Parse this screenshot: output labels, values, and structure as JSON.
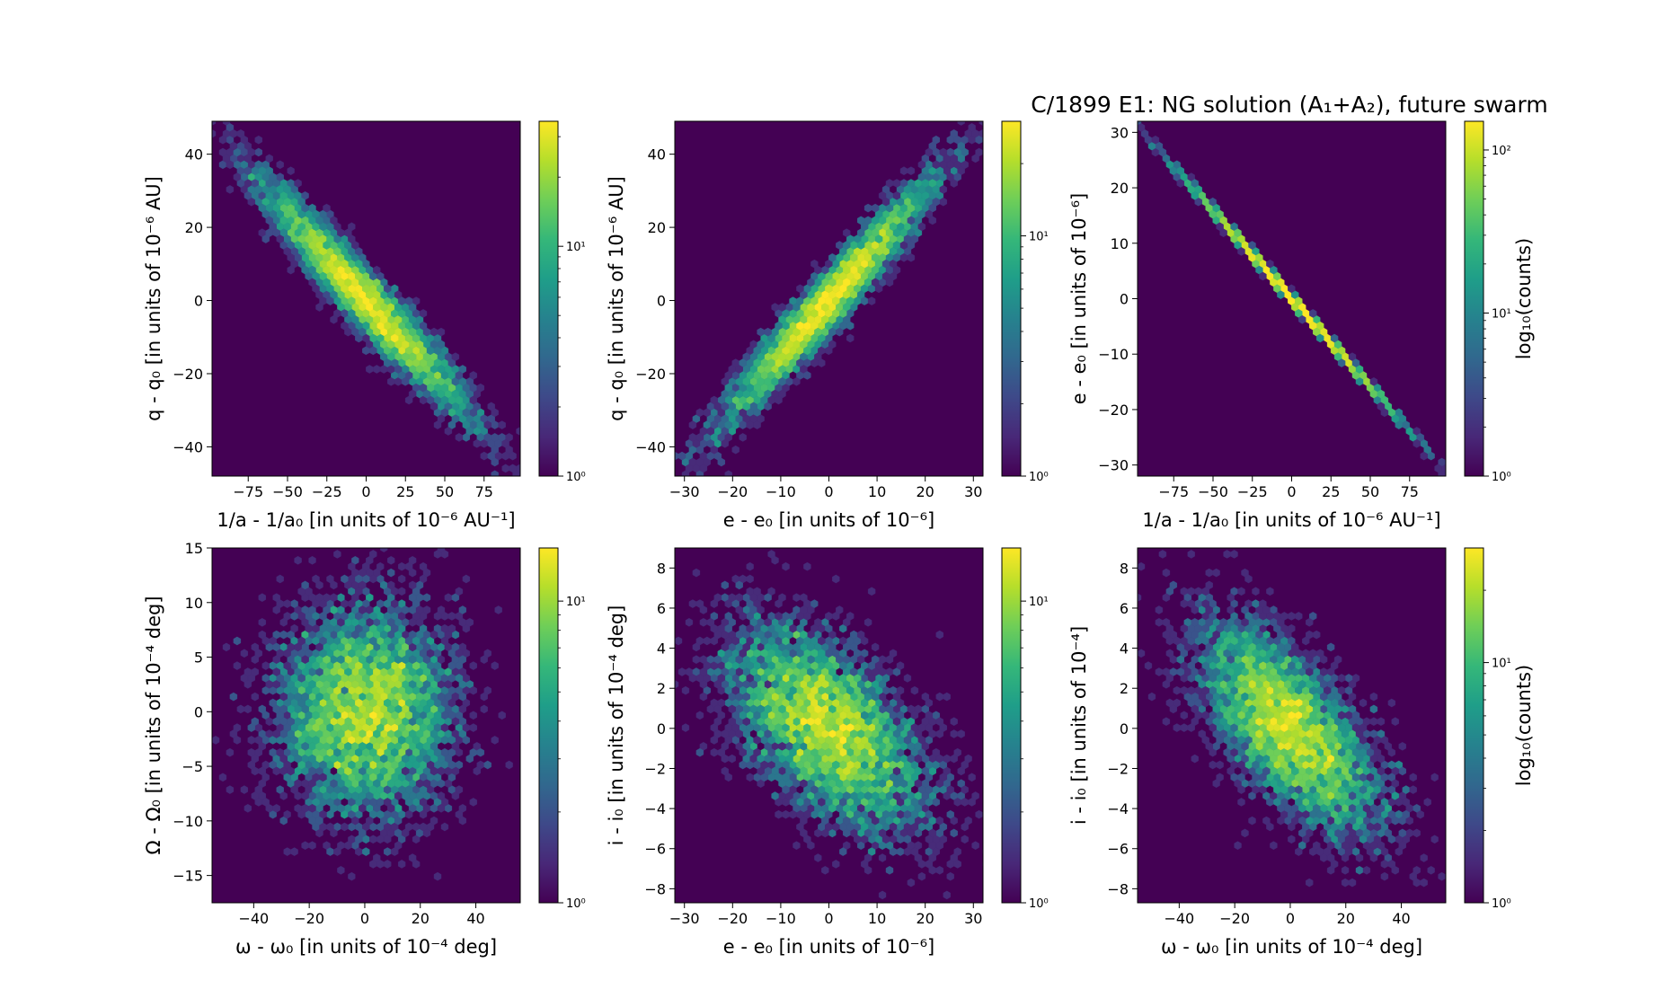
{
  "figure": {
    "title": "C/1899 E1:  NG solution (A₁+A₂), future swarm"
  },
  "colormap": [
    "#440154",
    "#482878",
    "#3e4989",
    "#31688e",
    "#26828e",
    "#1f9e89",
    "#35b779",
    "#6ece58",
    "#b5de2b",
    "#fde725"
  ],
  "chart_data": [
    {
      "type": "heatmap",
      "xlabel": "1/a - 1/a₀ [in units of 10⁻⁶ AU⁻¹]",
      "ylabel": "q - q₀ [in units of 10⁻⁶ AU]",
      "xlim": [
        -98,
        98
      ],
      "ylim": [
        -48,
        49
      ],
      "xticks": [
        -75,
        -50,
        -25,
        0,
        25,
        50,
        75
      ],
      "yticks": [
        -40,
        -20,
        0,
        20,
        40
      ],
      "colorbar": {
        "label": "",
        "min": 1,
        "max": 35,
        "ticks": [
          {
            "value": 1,
            "label": "10⁰"
          },
          {
            "value": 10,
            "label": "10¹"
          }
        ]
      },
      "distribution": {
        "sx": 33,
        "sy": 16,
        "rho": -0.96,
        "n": 5000
      }
    },
    {
      "type": "heatmap",
      "xlabel": "e - e₀ [in units of 10⁻⁶]",
      "ylabel": "q - q₀ [in units of 10⁻⁶ AU]",
      "xlim": [
        -32,
        32
      ],
      "ylim": [
        -48,
        49
      ],
      "xticks": [
        -30,
        -20,
        -10,
        0,
        10,
        20,
        30
      ],
      "yticks": [
        -40,
        -20,
        0,
        20,
        40
      ],
      "colorbar": {
        "label": "",
        "min": 1,
        "max": 30,
        "ticks": [
          {
            "value": 1,
            "label": "10⁰"
          },
          {
            "value": 10,
            "label": "10¹"
          }
        ]
      },
      "distribution": {
        "sx": 10.5,
        "sy": 16,
        "rho": 0.96,
        "n": 5000
      }
    },
    {
      "type": "heatmap",
      "xlabel": "1/a - 1/a₀ [in units of 10⁻⁶ AU⁻¹]",
      "ylabel": "e - e₀ [in units of 10⁻⁶]",
      "xlim": [
        -98,
        98
      ],
      "ylim": [
        -32,
        32
      ],
      "xticks": [
        -75,
        -50,
        -25,
        0,
        25,
        50,
        75
      ],
      "yticks": [
        -30,
        -20,
        -10,
        0,
        10,
        20,
        30
      ],
      "colorbar": {
        "label": "log₁₀(counts)",
        "min": 1,
        "max": 150,
        "ticks": [
          {
            "value": 1,
            "label": "10⁰"
          },
          {
            "value": 10,
            "label": "10¹"
          },
          {
            "value": 100,
            "label": "10²"
          }
        ]
      },
      "distribution": {
        "sx": 33,
        "sy": 10.5,
        "rho": -0.9995,
        "n": 5000
      }
    },
    {
      "type": "heatmap",
      "xlabel": "ω - ω₀ [in units of 10⁻⁴ deg]",
      "ylabel": "Ω - Ω₀ [in units of 10⁻⁴ deg]",
      "xlim": [
        -55,
        56
      ],
      "ylim": [
        -17.5,
        15
      ],
      "xticks": [
        -40,
        -20,
        0,
        20,
        40
      ],
      "yticks": [
        -15,
        -10,
        -5,
        0,
        5,
        10,
        15
      ],
      "colorbar": {
        "label": "",
        "min": 1,
        "max": 15,
        "ticks": [
          {
            "value": 1,
            "label": "10⁰"
          },
          {
            "value": 10,
            "label": "10¹"
          }
        ]
      },
      "distribution": {
        "sx": 16,
        "sy": 4.8,
        "rho": 0.0,
        "n": 5000
      }
    },
    {
      "type": "heatmap",
      "xlabel": "e - e₀ [in units of 10⁻⁶]",
      "ylabel": "i - i₀ [in units of 10⁻⁴ deg]",
      "xlim": [
        -32,
        32
      ],
      "ylim": [
        -8.7,
        9
      ],
      "xticks": [
        -30,
        -20,
        -10,
        0,
        10,
        20,
        30
      ],
      "yticks": [
        -8,
        -6,
        -4,
        -2,
        0,
        2,
        4,
        6,
        8
      ],
      "colorbar": {
        "label": "",
        "min": 1,
        "max": 15,
        "ticks": [
          {
            "value": 1,
            "label": "10⁰"
          },
          {
            "value": 10,
            "label": "10¹"
          }
        ]
      },
      "distribution": {
        "sx": 10.5,
        "sy": 2.6,
        "rho": -0.55,
        "n": 5000
      }
    },
    {
      "type": "heatmap",
      "xlabel": "ω - ω₀ [in units of 10⁻⁴ deg]",
      "ylabel": "i - i₀ [in units of 10⁻⁴]",
      "xlim": [
        -55,
        56
      ],
      "ylim": [
        -8.7,
        9
      ],
      "xticks": [
        -40,
        -20,
        0,
        20,
        40
      ],
      "yticks": [
        -8,
        -6,
        -4,
        -2,
        0,
        2,
        4,
        6,
        8
      ],
      "colorbar": {
        "label": "log₁₀(counts)",
        "min": 1,
        "max": 30,
        "ticks": [
          {
            "value": 1,
            "label": "10⁰"
          },
          {
            "value": 10,
            "label": "10¹"
          }
        ]
      },
      "distribution": {
        "sx": 16,
        "sy": 2.6,
        "rho": -0.65,
        "n": 5000
      }
    }
  ]
}
